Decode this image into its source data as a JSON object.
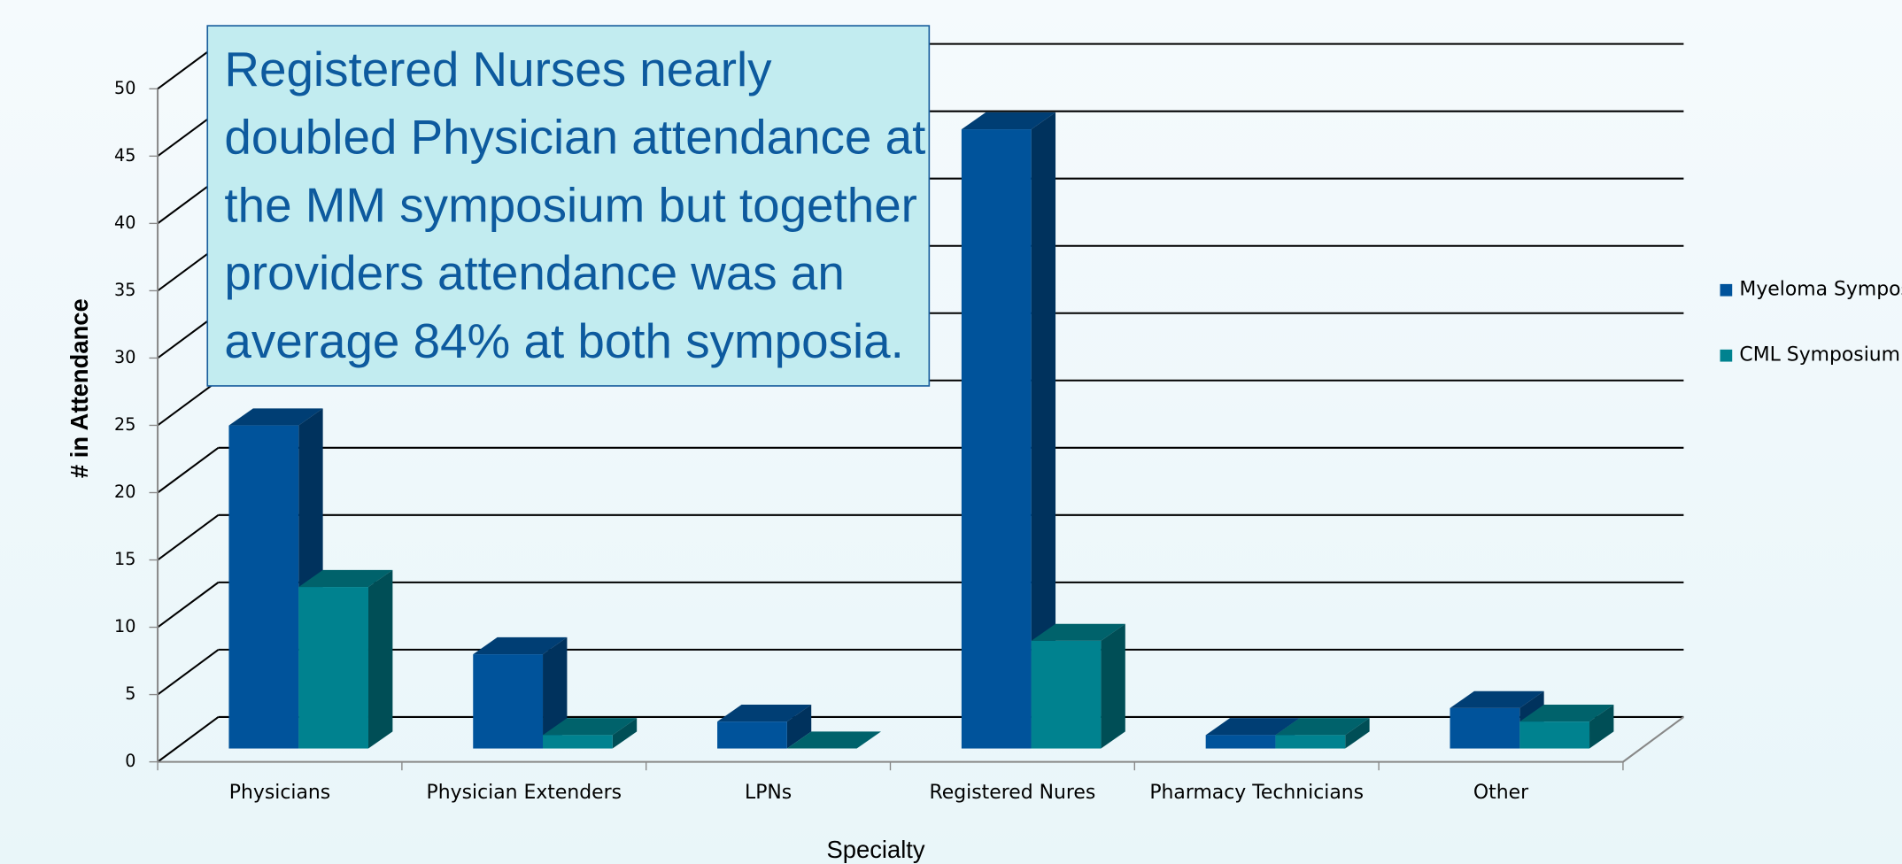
{
  "chart_data": {
    "type": "bar3d",
    "y_label": "# in Attendance",
    "x_label": "Specialty",
    "annotation": [
      "Registered Nurses nearly",
      "doubled Physician attendance at",
      "the MM symposium but together",
      "providers attendance was an",
      "average 84% at both symposia."
    ],
    "categories": [
      "Physicians",
      "Physician Extenders",
      "LPNs",
      "Registered Nures",
      "Pharmacy Technicians",
      "Other"
    ],
    "series": [
      {
        "name": "Myeloma Symposium",
        "color": "#00539b",
        "values": [
          24,
          7,
          2,
          46,
          1,
          3
        ]
      },
      {
        "name": "CML Symposium",
        "color": "#00828f",
        "values": [
          12,
          1,
          0,
          8,
          1,
          2
        ]
      }
    ],
    "ylim": [
      0,
      50
    ],
    "yticks": [
      0,
      5,
      10,
      15,
      20,
      25,
      30,
      35,
      40,
      45,
      50
    ],
    "grid": true
  }
}
